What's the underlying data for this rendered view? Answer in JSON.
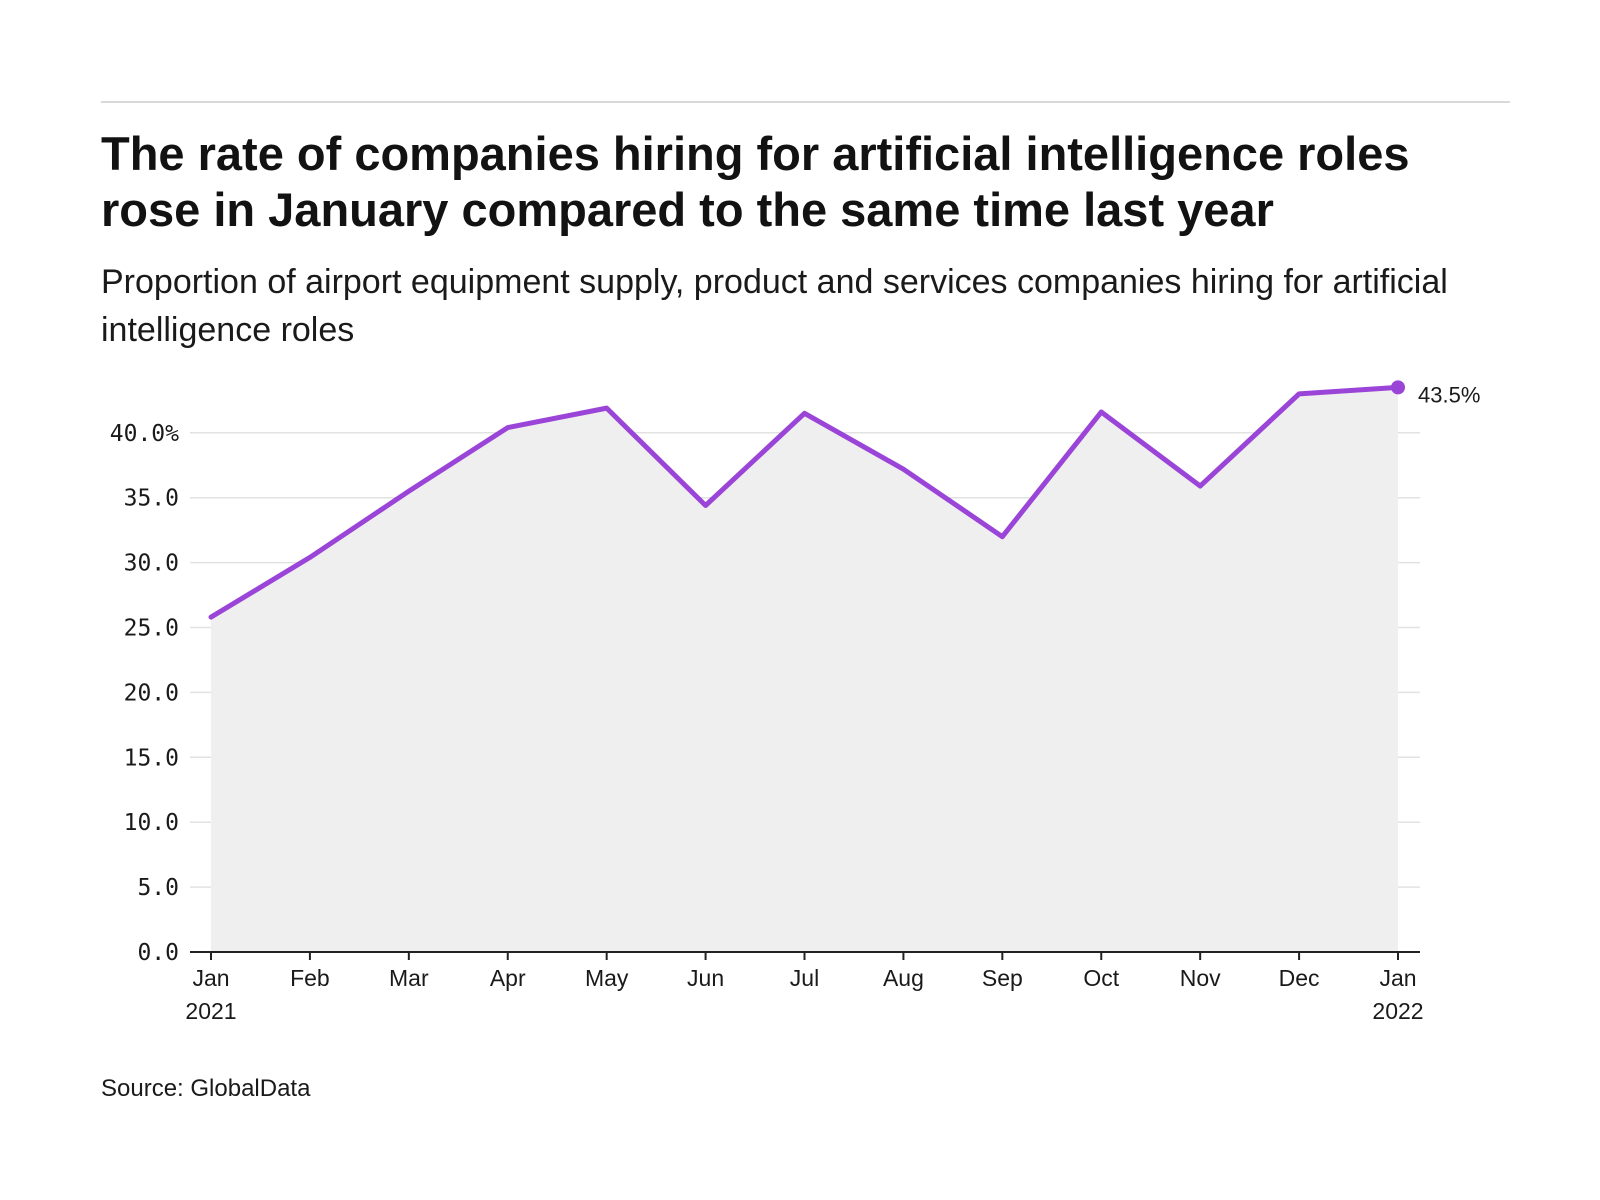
{
  "title": "The rate of companies hiring for artificial intelligence roles rose in January compared to the same time last year",
  "subtitle": "Proportion of airport equipment supply, product and services companies hiring for artificial intelligence roles",
  "source": "Source: GlobalData",
  "colors": {
    "line": "#9b45d8",
    "area": "#efefef",
    "grid": "#e2e2e2",
    "axis": "#222222",
    "rule": "#d9d9d9"
  },
  "chart_data": {
    "type": "line",
    "x": [
      "Jan 2021",
      "Feb 2021",
      "Mar 2021",
      "Apr 2021",
      "May 2021",
      "Jun 2021",
      "Jul 2021",
      "Aug 2021",
      "Sep 2021",
      "Oct 2021",
      "Nov 2021",
      "Dec 2021",
      "Jan 2022"
    ],
    "x_tick_labels": [
      [
        "Jan",
        "2021"
      ],
      [
        "Feb"
      ],
      [
        "Mar"
      ],
      [
        "Apr"
      ],
      [
        "May"
      ],
      [
        "Jun"
      ],
      [
        "Jul"
      ],
      [
        "Aug"
      ],
      [
        "Sep"
      ],
      [
        "Oct"
      ],
      [
        "Nov"
      ],
      [
        "Dec"
      ],
      [
        "Jan",
        "2022"
      ]
    ],
    "series": [
      {
        "values": [
          25.8,
          30.4,
          35.5,
          40.4,
          41.9,
          34.4,
          41.5,
          37.2,
          32.0,
          41.6,
          35.9,
          43.0,
          43.5
        ]
      }
    ],
    "y_ticks": [
      "0.0",
      "5.0",
      "10.0",
      "15.0",
      "20.0",
      "25.0",
      "30.0",
      "35.0",
      "40.0%"
    ],
    "ylim": [
      0,
      43.5
    ],
    "end_label": "43.5%",
    "grid": true,
    "area_fill": true,
    "legend": "none"
  }
}
